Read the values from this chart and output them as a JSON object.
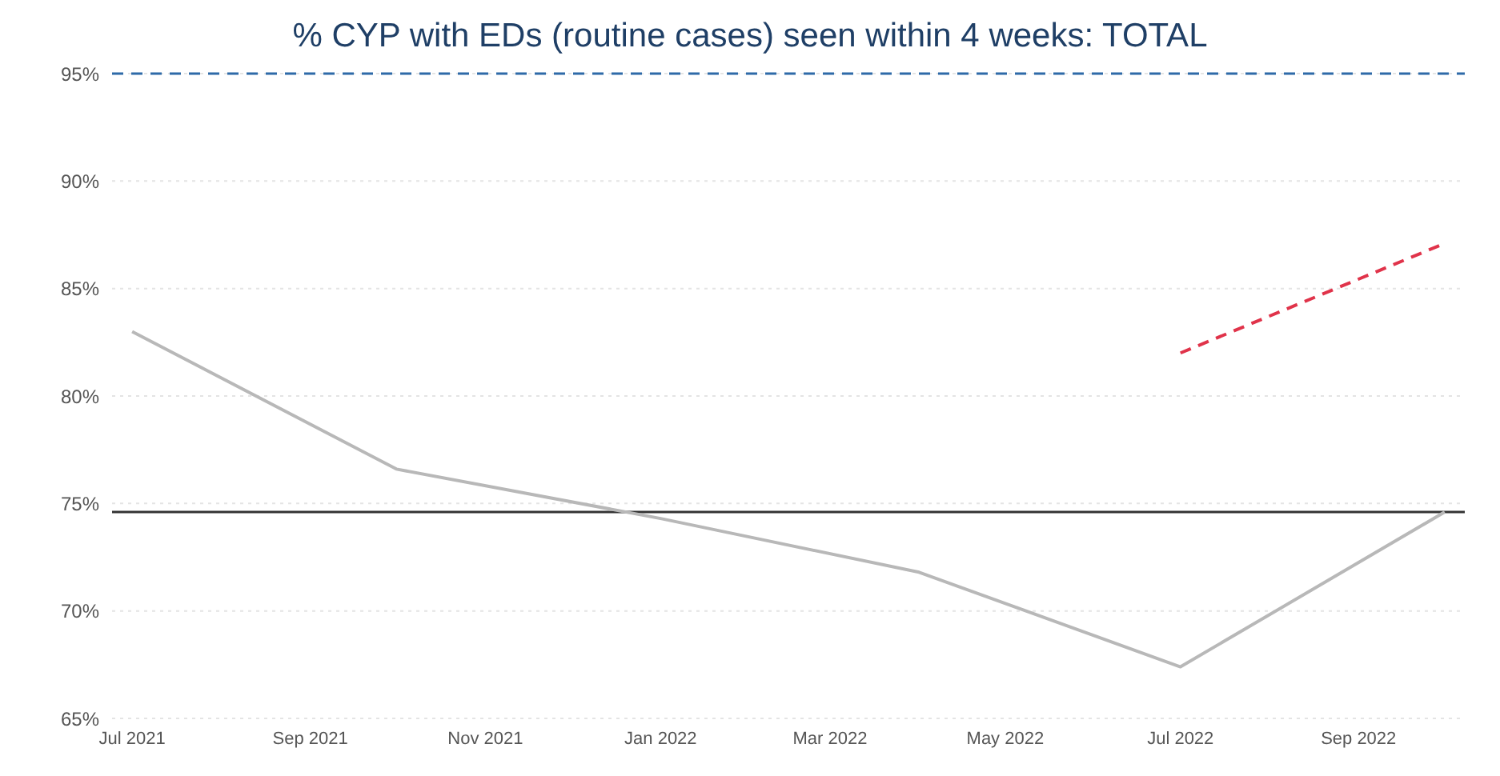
{
  "chart_data": {
    "type": "line",
    "title": "% CYP with EDs (routine cases) seen within 4 weeks: TOTAL",
    "series": [
      {
        "color": "#b8b8b8",
        "x": [
          "2021-07",
          "2021-10",
          "2022-01",
          "2022-04",
          "2022-07",
          "2022-10"
        ],
        "values": [
          83.0,
          76.6,
          74.3,
          71.8,
          67.4,
          74.6
        ]
      },
      {
        "type": "line",
        "color": "#e0334a",
        "line_style": "dashed",
        "x": [
          "2022-07",
          "2022-10"
        ],
        "values": [
          82.0,
          87.1
        ]
      }
    ],
    "ref_lines": [
      {
        "axis": "y",
        "value": 95,
        "color": "#2e6aa8",
        "line_style": "dashed"
      },
      {
        "axis": "y",
        "value": 74.6,
        "color": "#333333",
        "line_style": "solid"
      }
    ],
    "xlim": [
      "2021-06-24",
      "2022-10-08"
    ],
    "xticks": [
      {
        "value": "2021-07",
        "label": "Jul 2021"
      },
      {
        "value": "2021-09",
        "label": "Sep 2021"
      },
      {
        "value": "2021-11",
        "label": "Nov 2021"
      },
      {
        "value": "2022-01",
        "label": "Jan 2022"
      },
      {
        "value": "2022-03",
        "label": "Mar 2022"
      },
      {
        "value": "2022-05",
        "label": "May 2022"
      },
      {
        "value": "2022-07",
        "label": "Jul 2022"
      },
      {
        "value": "2022-09",
        "label": "Sep 2022"
      }
    ],
    "ylim": [
      65,
      95
    ],
    "yticks": [
      {
        "value": 65,
        "label": "65%"
      },
      {
        "value": 70,
        "label": "70%"
      },
      {
        "value": 75,
        "label": "75%"
      },
      {
        "value": 80,
        "label": "80%"
      },
      {
        "value": 85,
        "label": "85%"
      },
      {
        "value": 90,
        "label": "90%"
      },
      {
        "value": 95,
        "label": "95%"
      }
    ],
    "grid": "y",
    "marker": "none"
  }
}
